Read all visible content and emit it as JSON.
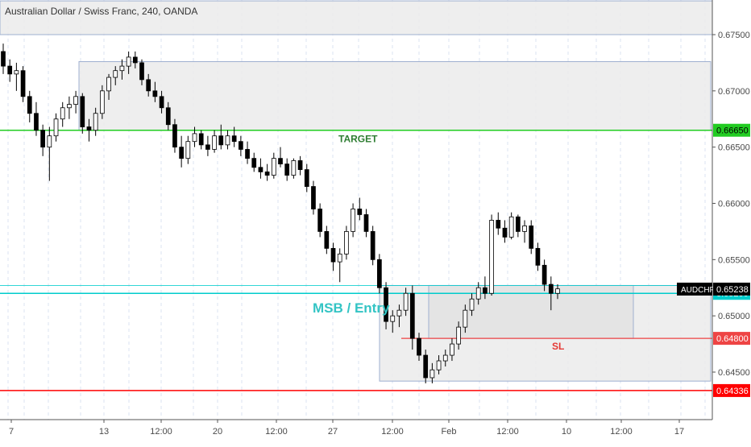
{
  "chart_data": {
    "type": "candlestick",
    "title": "Australian Dollar / Swiss Franc, 240, OANDA",
    "symbol": "AUDCHF",
    "last_price": "0.65238",
    "y_axis_ticks": [
      "0.67500",
      "0.67000",
      "0.66500",
      "0.66000",
      "0.65500",
      "0.65000",
      "0.64500"
    ],
    "x_axis_ticks": [
      "7",
      "13",
      "12:00",
      "20",
      "12:00",
      "27",
      "12:00",
      "Feb",
      "12:00",
      "10",
      "12:00",
      "17"
    ],
    "price_range": [
      0.6405,
      0.678
    ],
    "horizontal_levels": [
      {
        "price": 0.6665,
        "label": "0.66650",
        "color": "#22cc22"
      },
      {
        "price": 0.652,
        "label": "0.65200",
        "color": "#00cccc"
      },
      {
        "price": 0.648,
        "label": "0.64800",
        "color": "#ee4444"
      },
      {
        "price": 0.64336,
        "label": "0.64336",
        "color": "#ff0000"
      }
    ],
    "annotations": [
      {
        "text": "TARGET",
        "color": "#2e7d32"
      },
      {
        "text": "MSB / Entry",
        "color": "#33c4c4"
      },
      {
        "text": "SL",
        "color": "#e53935"
      }
    ],
    "zones": [
      {
        "name": "upper-supply-zone",
        "top": 0.678,
        "bottom": 0.675
      },
      {
        "name": "supply-zone",
        "top": 0.6726,
        "bottom": 0.6665
      },
      {
        "name": "demand-zone",
        "top": 0.6527,
        "bottom": 0.6442
      },
      {
        "name": "entry-zone",
        "top": 0.6527,
        "bottom": 0.648
      }
    ],
    "candles": [
      [
        0.6735,
        0.6742,
        0.6715,
        0.6722
      ],
      [
        0.6722,
        0.6728,
        0.6708,
        0.6715
      ],
      [
        0.6715,
        0.6725,
        0.67,
        0.6718
      ],
      [
        0.6718,
        0.6722,
        0.669,
        0.6695
      ],
      [
        0.6695,
        0.67,
        0.6672,
        0.668
      ],
      [
        0.668,
        0.669,
        0.666,
        0.6665
      ],
      [
        0.6665,
        0.667,
        0.6642,
        0.665
      ],
      [
        0.665,
        0.6668,
        0.662,
        0.666
      ],
      [
        0.666,
        0.668,
        0.6655,
        0.6675
      ],
      [
        0.6675,
        0.669,
        0.6668,
        0.6685
      ],
      [
        0.6685,
        0.6695,
        0.6675,
        0.6688
      ],
      [
        0.6688,
        0.67,
        0.668,
        0.6695
      ],
      [
        0.6695,
        0.6698,
        0.6662,
        0.6668
      ],
      [
        0.6668,
        0.6675,
        0.6655,
        0.6665
      ],
      [
        0.6665,
        0.6685,
        0.666,
        0.668
      ],
      [
        0.668,
        0.6705,
        0.6675,
        0.67
      ],
      [
        0.67,
        0.6715,
        0.6692,
        0.6712
      ],
      [
        0.6712,
        0.6722,
        0.6705,
        0.6718
      ],
      [
        0.6718,
        0.6728,
        0.671,
        0.6722
      ],
      [
        0.6722,
        0.6735,
        0.6715,
        0.673
      ],
      [
        0.673,
        0.6735,
        0.672,
        0.6725
      ],
      [
        0.6725,
        0.6728,
        0.6705,
        0.671
      ],
      [
        0.671,
        0.6715,
        0.6695,
        0.67
      ],
      [
        0.67,
        0.6708,
        0.669,
        0.6695
      ],
      [
        0.6695,
        0.67,
        0.668,
        0.6685
      ],
      [
        0.6685,
        0.669,
        0.6665,
        0.667
      ],
      [
        0.667,
        0.6675,
        0.6645,
        0.665
      ],
      [
        0.665,
        0.666,
        0.6632,
        0.664
      ],
      [
        0.664,
        0.666,
        0.6635,
        0.6655
      ],
      [
        0.6655,
        0.6668,
        0.665,
        0.6662
      ],
      [
        0.6662,
        0.6665,
        0.6648,
        0.6652
      ],
      [
        0.6652,
        0.666,
        0.6642,
        0.6648
      ],
      [
        0.6648,
        0.6665,
        0.6645,
        0.666
      ],
      [
        0.666,
        0.667,
        0.6648,
        0.6652
      ],
      [
        0.6652,
        0.6665,
        0.6648,
        0.666
      ],
      [
        0.666,
        0.6668,
        0.665,
        0.6655
      ],
      [
        0.6655,
        0.666,
        0.6642,
        0.6648
      ],
      [
        0.6648,
        0.6655,
        0.6635,
        0.664
      ],
      [
        0.664,
        0.6645,
        0.6628,
        0.6632
      ],
      [
        0.6632,
        0.664,
        0.6622,
        0.6628
      ],
      [
        0.6628,
        0.6635,
        0.662,
        0.6625
      ],
      [
        0.6625,
        0.6645,
        0.6622,
        0.664
      ],
      [
        0.664,
        0.665,
        0.6632,
        0.6635
      ],
      [
        0.6635,
        0.664,
        0.662,
        0.6625
      ],
      [
        0.6625,
        0.664,
        0.6622,
        0.6638
      ],
      [
        0.6638,
        0.6642,
        0.6625,
        0.663
      ],
      [
        0.663,
        0.6635,
        0.661,
        0.6615
      ],
      [
        0.6615,
        0.662,
        0.659,
        0.6595
      ],
      [
        0.6595,
        0.66,
        0.657,
        0.6575
      ],
      [
        0.6575,
        0.658,
        0.6555,
        0.656
      ],
      [
        0.656,
        0.6565,
        0.654,
        0.6548
      ],
      [
        0.6548,
        0.656,
        0.653,
        0.6555
      ],
      [
        0.6555,
        0.658,
        0.655,
        0.6575
      ],
      [
        0.6575,
        0.66,
        0.657,
        0.6595
      ],
      [
        0.6595,
        0.6605,
        0.6585,
        0.659
      ],
      [
        0.659,
        0.6595,
        0.657,
        0.6575
      ],
      [
        0.6575,
        0.658,
        0.6545,
        0.655
      ],
      [
        0.655,
        0.6555,
        0.652,
        0.6525
      ],
      [
        0.6525,
        0.653,
        0.6488,
        0.6495
      ],
      [
        0.6495,
        0.6505,
        0.6485,
        0.65
      ],
      [
        0.65,
        0.651,
        0.649,
        0.6505
      ],
      [
        0.6505,
        0.6525,
        0.65,
        0.652
      ],
      [
        0.652,
        0.6527,
        0.647,
        0.648
      ],
      [
        0.648,
        0.6485,
        0.646,
        0.6465
      ],
      [
        0.6465,
        0.647,
        0.644,
        0.6445
      ],
      [
        0.6445,
        0.6458,
        0.644,
        0.6452
      ],
      [
        0.6452,
        0.6465,
        0.6448,
        0.646
      ],
      [
        0.646,
        0.647,
        0.6455,
        0.6465
      ],
      [
        0.6465,
        0.648,
        0.646,
        0.6475
      ],
      [
        0.6475,
        0.6495,
        0.647,
        0.649
      ],
      [
        0.649,
        0.651,
        0.6485,
        0.6505
      ],
      [
        0.6505,
        0.652,
        0.65,
        0.6515
      ],
      [
        0.6515,
        0.653,
        0.651,
        0.6525
      ],
      [
        0.6525,
        0.6535,
        0.6515,
        0.652
      ],
      [
        0.652,
        0.659,
        0.6518,
        0.6585
      ],
      [
        0.6585,
        0.6592,
        0.6572,
        0.6578
      ],
      [
        0.6578,
        0.6585,
        0.6565,
        0.657
      ],
      [
        0.657,
        0.6592,
        0.6568,
        0.6588
      ],
      [
        0.6588,
        0.659,
        0.657,
        0.6575
      ],
      [
        0.6575,
        0.6585,
        0.6565,
        0.658
      ],
      [
        0.658,
        0.6585,
        0.6555,
        0.656
      ],
      [
        0.656,
        0.6565,
        0.654,
        0.6545
      ],
      [
        0.6545,
        0.655,
        0.6522,
        0.6528
      ],
      [
        0.6528,
        0.6535,
        0.6505,
        0.652
      ],
      [
        0.652,
        0.6528,
        0.6515,
        0.6524
      ]
    ]
  }
}
